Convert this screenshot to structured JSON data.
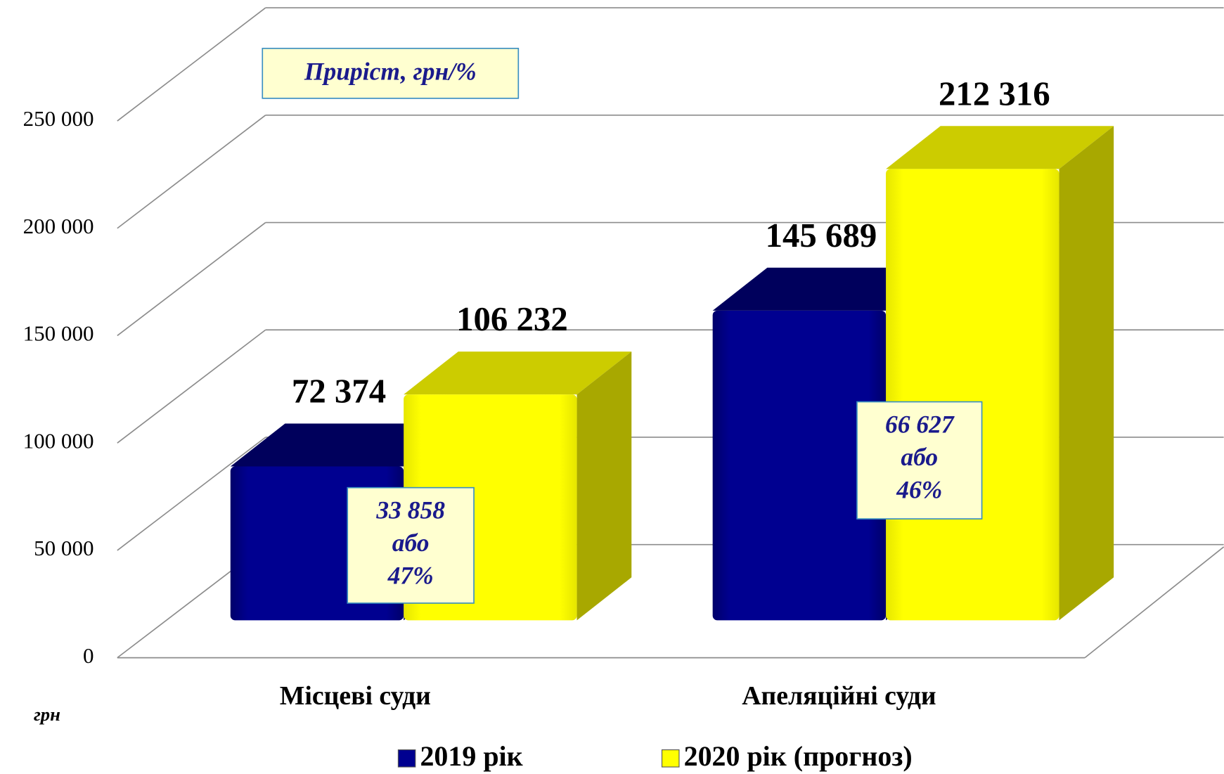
{
  "chart_data": {
    "type": "bar3d",
    "categories": [
      "Місцеві суди",
      "Апеляційні суди"
    ],
    "series": [
      {
        "name": "2019 рік",
        "color": "#000090",
        "values": [
          72374,
          145689
        ],
        "value_labels": [
          "72 374",
          "145 689"
        ]
      },
      {
        "name": "2020 рік (прогноз)",
        "color": "#ffff00",
        "values": [
          106232,
          212316
        ],
        "value_labels": [
          "106 232",
          "212 316"
        ]
      }
    ],
    "ylim": [
      0,
      250000
    ],
    "yticks": [
      0,
      {
        "value": 50000,
        "label": "50 000"
      },
      {
        "value": 100000,
        "label": "100 000"
      },
      {
        "value": 150000,
        "label": "150 000"
      },
      {
        "value": 200000,
        "label": "200 000"
      },
      {
        "value": 250000,
        "label": "250 000"
      }
    ],
    "grid": true,
    "legend": "bottom",
    "annotation_title": "Приріст, грн/%",
    "growth_labels": [
      [
        "33 858",
        "або",
        "47%"
      ],
      [
        "66 627",
        "або",
        "46%"
      ]
    ],
    "y_unit_label": "грн"
  }
}
